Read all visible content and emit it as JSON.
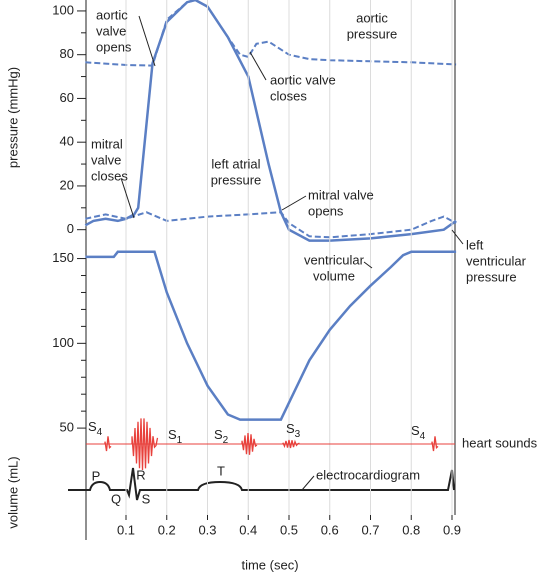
{
  "chart_data": [
    {
      "type": "line",
      "ylabel": "pressure (mmHg)",
      "xlim": [
        0,
        0.91
      ],
      "ylim": [
        -7,
        105
      ],
      "yticks": [
        0,
        20,
        40,
        60,
        80,
        100
      ],
      "yminorticks": [
        10,
        30,
        50,
        70,
        90
      ],
      "series": [
        {
          "color": "#5b7fc4",
          "dash": true,
          "x": [
            0,
            0.1,
            0.165,
            0.2,
            0.25,
            0.27,
            0.3,
            0.35,
            0.38,
            0.4,
            0.42,
            0.45,
            0.5,
            0.55,
            0.6,
            0.7,
            0.8,
            0.91
          ],
          "values": [
            76.5,
            75.3,
            75,
            96,
            104,
            105,
            102,
            88,
            80,
            79,
            85,
            86,
            80,
            78,
            77.5,
            77,
            76.5,
            75.5
          ]
        },
        {
          "color": "#5b7fc4",
          "dash": false,
          "x": [
            0,
            0.02,
            0.05,
            0.08,
            0.1,
            0.12,
            0.13,
            0.165,
            0.2,
            0.25,
            0.27,
            0.3,
            0.35,
            0.4,
            0.45,
            0.48,
            0.5,
            0.55,
            0.6,
            0.7,
            0.8,
            0.88,
            0.91
          ],
          "values": [
            2,
            4,
            5,
            4,
            5,
            7,
            10,
            76,
            95,
            104,
            105,
            102,
            88,
            70,
            30,
            8,
            0,
            -5,
            -5,
            -4,
            -2,
            0,
            4
          ]
        },
        {
          "color": "#5b7fc4",
          "dash": true,
          "x": [
            0,
            0.05,
            0.1,
            0.15,
            0.2,
            0.3,
            0.4,
            0.48,
            0.5,
            0.55,
            0.6,
            0.7,
            0.8,
            0.85,
            0.88,
            0.91
          ],
          "values": [
            5,
            7,
            5,
            8,
            4,
            6,
            7,
            8,
            3,
            -3,
            -3.5,
            -2,
            0,
            4,
            6,
            3
          ]
        }
      ]
    },
    {
      "type": "line",
      "ylabel": "volume (mL)",
      "xlabel": "time (sec)",
      "xlim": [
        0,
        0.91
      ],
      "ylim": [
        -16,
        158
      ],
      "yticks": [
        50,
        100,
        150
      ],
      "yminorticks": [
        60,
        70,
        80,
        90,
        110,
        120,
        130,
        140
      ],
      "xticks": [
        0.1,
        0.2,
        0.3,
        0.4,
        0.5,
        0.6,
        0.7,
        0.8,
        0.9
      ],
      "xgrid": true,
      "series": [
        {
          "color": "#5b7fc4",
          "dash": false,
          "x": [
            0,
            0.07,
            0.08,
            0.17,
            0.2,
            0.25,
            0.3,
            0.35,
            0.38,
            0.48,
            0.5,
            0.55,
            0.6,
            0.65,
            0.7,
            0.75,
            0.78,
            0.8,
            0.91
          ],
          "values": [
            151,
            151,
            154,
            154,
            130,
            100,
            75,
            58,
            55,
            55,
            65,
            90,
            108,
            122,
            134,
            145,
            152,
            154,
            154
          ]
        }
      ]
    }
  ],
  "annotations": [
    {
      "lines": [
        "aortic",
        "valve",
        "opens"
      ]
    },
    {
      "lines": [
        "aortic",
        "pressure"
      ]
    },
    {
      "lines": [
        "aortic valve",
        "closes"
      ]
    },
    {
      "lines": [
        "mitral",
        "valve",
        "closes"
      ]
    },
    {
      "lines": [
        "left atrial",
        "pressure"
      ]
    },
    {
      "lines": [
        "mitral valve",
        "opens"
      ]
    },
    {
      "lines": [
        "left",
        "ventricular",
        "pressure"
      ]
    },
    {
      "lines": [
        "ventricular",
        "volume"
      ]
    },
    {
      "lines": [
        "heart sounds"
      ]
    },
    {
      "lines": [
        "electrocardiogram"
      ]
    }
  ],
  "heart_sounds": {
    "color": "#e8413c",
    "labels": [
      {
        "text": "S",
        "sub": "4"
      },
      {
        "text": "S",
        "sub": "1"
      },
      {
        "text": "S",
        "sub": "2"
      },
      {
        "text": "S",
        "sub": "3"
      },
      {
        "text": "S",
        "sub": "4"
      }
    ]
  },
  "ecg": {
    "labels": [
      "P",
      "Q",
      "R",
      "S",
      "T"
    ]
  }
}
